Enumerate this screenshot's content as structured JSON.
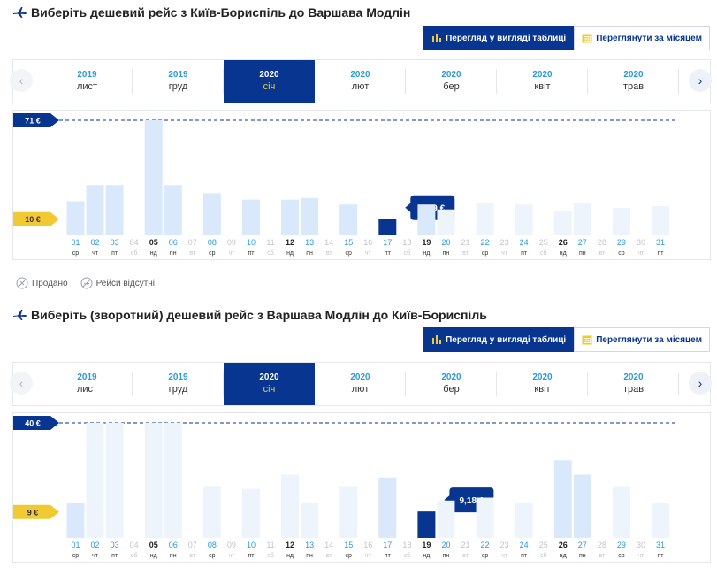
{
  "outbound": {
    "title": "Виберіть дешевий рейс з Київ-Бориспіль до Варшава Модлін",
    "toggle": {
      "table_label": "Перегляд у вигляді таблиці",
      "month_label": "Переглянути за місяцем"
    },
    "months": [
      {
        "year": "2019",
        "name": "лист"
      },
      {
        "year": "2019",
        "name": "груд"
      },
      {
        "year": "2020",
        "name": "січ"
      },
      {
        "year": "2020",
        "name": "лют"
      },
      {
        "year": "2020",
        "name": "бер"
      },
      {
        "year": "2020",
        "name": "квіт"
      },
      {
        "year": "2020",
        "name": "трав"
      }
    ],
    "active_month": 2,
    "max_label": "71 €",
    "min_label": "10 €",
    "selected_label": "9,99 €"
  },
  "inbound": {
    "title": "Виберіть (зворотний) дешевий рейс з Варшава Модлін до Київ-Бориспіль",
    "toggle": {
      "table_label": "Перегляд у вигляді таблиці",
      "month_label": "Переглянути за місяцем"
    },
    "months": [
      {
        "year": "2019",
        "name": "лист"
      },
      {
        "year": "2019",
        "name": "груд"
      },
      {
        "year": "2020",
        "name": "січ"
      },
      {
        "year": "2020",
        "name": "лют"
      },
      {
        "year": "2020",
        "name": "бер"
      },
      {
        "year": "2020",
        "name": "квіт"
      },
      {
        "year": "2020",
        "name": "трав"
      }
    ],
    "active_month": 2,
    "max_label": "40 €",
    "min_label": "9 €",
    "selected_label": "9,18 €"
  },
  "legend": {
    "sold_out": "Продано",
    "no_flights": "Рейси відсутні"
  },
  "colors": {
    "brand_blue": "#073590",
    "accent_yellow": "#f1c933",
    "bar_light": "#d9e8fb",
    "bar_faint": "#eef4fc",
    "day_link": "#2c9ad7"
  },
  "chart_data": [
    {
      "type": "bar",
      "title": "Виберіть дешевий рейс з Київ-Бориспіль до Варшава Модлін",
      "categories": [
        "01",
        "02",
        "03",
        "04",
        "05",
        "06",
        "07",
        "08",
        "09",
        "10",
        "11",
        "12",
        "13",
        "14",
        "15",
        "16",
        "17",
        "18",
        "19",
        "20",
        "21",
        "22",
        "23",
        "24",
        "25",
        "26",
        "27",
        "28",
        "29",
        "30",
        "31"
      ],
      "weekdays": [
        "ср",
        "чт",
        "пт",
        "сб",
        "нд",
        "пн",
        "вт",
        "ср",
        "чт",
        "пт",
        "сб",
        "нд",
        "пн",
        "вт",
        "ср",
        "чт",
        "пт",
        "сб",
        "нд",
        "пн",
        "вт",
        "ср",
        "чт",
        "пт",
        "сб",
        "нд",
        "пн",
        "вт",
        "ср",
        "чт",
        "пт"
      ],
      "values": [
        21,
        31,
        31,
        null,
        71,
        31,
        null,
        26,
        null,
        22,
        null,
        22,
        23,
        null,
        19,
        null,
        10,
        null,
        19,
        16,
        null,
        20,
        null,
        19,
        null,
        15,
        20,
        null,
        17,
        null,
        18
      ],
      "faint_days": [
        "20",
        "22",
        "24",
        "26",
        "27",
        "29",
        "31"
      ],
      "selected_day": "17",
      "selected_value": 9.99,
      "max_line": 71,
      "min_line": 10,
      "ylim": [
        0,
        71
      ],
      "bold_days": [
        "05",
        "12",
        "19",
        "26"
      ],
      "grey_days": [
        "04",
        "07",
        "09",
        "11",
        "14",
        "16",
        "18",
        "21",
        "23",
        "25",
        "28",
        "30"
      ]
    },
    {
      "type": "bar",
      "title": "Виберіть (зворотний) дешевий рейс з Варшава Модлін до Київ-Бориспіль",
      "categories": [
        "01",
        "02",
        "03",
        "04",
        "05",
        "06",
        "07",
        "08",
        "09",
        "10",
        "11",
        "12",
        "13",
        "14",
        "15",
        "16",
        "17",
        "18",
        "19",
        "20",
        "21",
        "22",
        "23",
        "24",
        "25",
        "26",
        "27",
        "28",
        "29",
        "30",
        "31"
      ],
      "weekdays": [
        "ср",
        "чт",
        "пт",
        "сб",
        "нд",
        "пн",
        "вт",
        "ср",
        "чт",
        "пт",
        "сб",
        "нд",
        "пн",
        "вт",
        "ср",
        "чт",
        "пт",
        "сб",
        "нд",
        "пн",
        "вт",
        "ср",
        "чт",
        "пт",
        "сб",
        "нд",
        "пн",
        "вт",
        "ср",
        "чт",
        "пт"
      ],
      "values": [
        12,
        40,
        40,
        null,
        40,
        40,
        null,
        18,
        null,
        17,
        null,
        22,
        12,
        null,
        18,
        null,
        21,
        null,
        9,
        13,
        null,
        14,
        null,
        12,
        null,
        27,
        22,
        null,
        18,
        null,
        12
      ],
      "faint_days": [
        "02",
        "03",
        "05",
        "06",
        "08",
        "10",
        "12",
        "13",
        "15",
        "20",
        "22",
        "24",
        "29",
        "31"
      ],
      "selected_day": "19",
      "selected_value": 9.18,
      "max_line": 40,
      "min_line": 9,
      "ylim": [
        0,
        40
      ],
      "bold_days": [
        "05",
        "12",
        "19",
        "26"
      ],
      "grey_days": [
        "04",
        "07",
        "09",
        "11",
        "14",
        "16",
        "18",
        "21",
        "23",
        "25",
        "28",
        "30"
      ]
    }
  ]
}
